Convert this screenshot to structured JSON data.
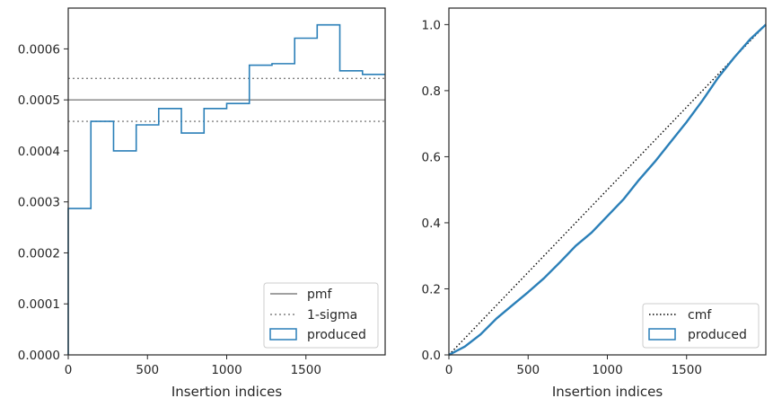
{
  "colors": {
    "produced": "#2a7fb8",
    "pmf": "#808080",
    "sigma": "#808080",
    "cmf": "#000000",
    "axis": "#262626"
  },
  "chart_data": [
    {
      "type": "histogram-step",
      "xlabel": "Insertion indices",
      "ylabel": "",
      "xlim": [
        0,
        2000
      ],
      "ylim": [
        0,
        0.00068
      ],
      "xticks": [
        0,
        500,
        1000,
        1500
      ],
      "xtick_labels": [
        "0",
        "500",
        "1000",
        "1500"
      ],
      "yticks": [
        0,
        0.0001,
        0.0002,
        0.0003,
        0.0004,
        0.0005,
        0.0006
      ],
      "ytick_labels": [
        "0.0000",
        "0.0001",
        "0.0002",
        "0.0003",
        "0.0004",
        "0.0005",
        "0.0006"
      ],
      "bin_edges": [
        0,
        143,
        286,
        429,
        571,
        714,
        857,
        1000,
        1143,
        1286,
        1429,
        1571,
        1714,
        1857,
        2000
      ],
      "values": [
        0.000287,
        0.000458,
        0.0004,
        0.000451,
        0.000483,
        0.000435,
        0.000483,
        0.000493,
        0.000568,
        0.000571,
        0.000621,
        0.000647,
        0.000557,
        0.00055
      ],
      "pmf": 0.0005,
      "sigma_upper": 0.000542,
      "sigma_lower": 0.000458,
      "legend": {
        "position": "lower right",
        "entries": [
          {
            "label": "pmf",
            "style": "solid-line"
          },
          {
            "label": "1-sigma",
            "style": "dotted-line"
          },
          {
            "label": "produced",
            "style": "patch"
          }
        ]
      }
    },
    {
      "type": "line",
      "xlabel": "Insertion indices",
      "ylabel": "",
      "xlim": [
        0,
        2000
      ],
      "ylim": [
        0,
        1.05
      ],
      "xticks": [
        0,
        500,
        1000,
        1500
      ],
      "xtick_labels": [
        "0",
        "500",
        "1000",
        "1500"
      ],
      "yticks": [
        0,
        0.2,
        0.4,
        0.6,
        0.8,
        1.0
      ],
      "ytick_labels": [
        "0.0",
        "0.2",
        "0.4",
        "0.6",
        "0.8",
        "1.0"
      ],
      "series": [
        {
          "name": "cmf",
          "x": [
            0,
            2000
          ],
          "y": [
            0,
            1.0
          ]
        },
        {
          "name": "produced",
          "x": [
            0,
            100,
            200,
            300,
            400,
            500,
            600,
            700,
            800,
            900,
            1000,
            1100,
            1200,
            1300,
            1400,
            1500,
            1600,
            1700,
            1800,
            1900,
            2000
          ],
          "y": [
            0,
            0.025,
            0.062,
            0.11,
            0.15,
            0.19,
            0.232,
            0.28,
            0.33,
            0.37,
            0.42,
            0.47,
            0.53,
            0.585,
            0.645,
            0.705,
            0.77,
            0.84,
            0.9,
            0.955,
            1.0
          ]
        }
      ],
      "legend": {
        "position": "lower right",
        "entries": [
          {
            "label": "cmf",
            "style": "dotted-line"
          },
          {
            "label": "produced",
            "style": "patch"
          }
        ]
      }
    }
  ]
}
